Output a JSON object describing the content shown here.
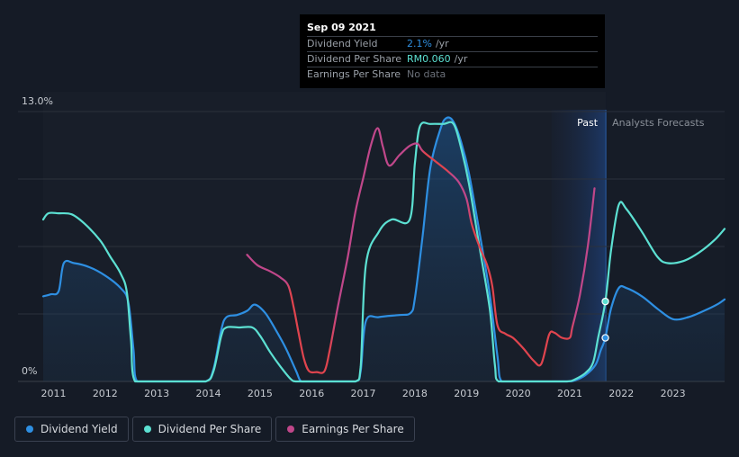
{
  "tooltip": {
    "date": "Sep 09 2021",
    "rows": [
      {
        "label": "Dividend Yield",
        "value": "2.1%",
        "unit": "/yr"
      },
      {
        "label": "Dividend Per Share",
        "value": "RM0.060",
        "unit": "/yr"
      },
      {
        "label": "Earnings Per Share",
        "value": "No data",
        "unit": ""
      }
    ]
  },
  "legend": [
    {
      "label": "Dividend Yield",
      "color": "#2e8fe2"
    },
    {
      "label": "Dividend Per Share",
      "color": "#5ce0d2"
    },
    {
      "label": "Earnings Per Share",
      "color": "#c0478a"
    }
  ],
  "chart_data": {
    "type": "line",
    "y_top_label": "13.0%",
    "y_bottom_label": "0%",
    "ylim": [
      0,
      13
    ],
    "xlim": [
      2010.8,
      2024.0
    ],
    "x_ticks": [
      "2011",
      "2012",
      "2013",
      "2014",
      "2015",
      "2016",
      "2017",
      "2018",
      "2019",
      "2020",
      "2021",
      "2022",
      "2023"
    ],
    "past_label": "Past",
    "forecast_label": "Analysts Forecasts",
    "forecast_start": 2021.7,
    "series": [
      {
        "name": "Dividend Yield",
        "color": "#2e8fe2",
        "area": true,
        "points": [
          [
            2010.8,
            4.1
          ],
          [
            2010.95,
            4.2
          ],
          [
            2011.1,
            4.35
          ],
          [
            2011.2,
            5.7
          ],
          [
            2011.4,
            5.7
          ],
          [
            2011.7,
            5.5
          ],
          [
            2012.0,
            5.1
          ],
          [
            2012.3,
            4.5
          ],
          [
            2012.45,
            3.8
          ],
          [
            2012.55,
            1.5
          ],
          [
            2012.62,
            0
          ],
          [
            2013.0,
            0
          ],
          [
            2013.5,
            0
          ],
          [
            2013.95,
            0
          ],
          [
            2014.1,
            0.6
          ],
          [
            2014.25,
            2.5
          ],
          [
            2014.35,
            3.1
          ],
          [
            2014.55,
            3.2
          ],
          [
            2014.75,
            3.4
          ],
          [
            2014.9,
            3.7
          ],
          [
            2015.1,
            3.3
          ],
          [
            2015.3,
            2.5
          ],
          [
            2015.5,
            1.6
          ],
          [
            2015.7,
            0.5
          ],
          [
            2015.8,
            0
          ],
          [
            2016.0,
            0
          ],
          [
            2016.4,
            0
          ],
          [
            2016.85,
            0
          ],
          [
            2016.95,
            0.5
          ],
          [
            2017.05,
            2.9
          ],
          [
            2017.3,
            3.1
          ],
          [
            2017.7,
            3.2
          ],
          [
            2017.92,
            3.3
          ],
          [
            2018.0,
            4.0
          ],
          [
            2018.15,
            7.0
          ],
          [
            2018.3,
            10.3
          ],
          [
            2018.5,
            12.2
          ],
          [
            2018.62,
            12.7
          ],
          [
            2018.75,
            12.5
          ],
          [
            2018.9,
            11.5
          ],
          [
            2019.05,
            10.0
          ],
          [
            2019.25,
            7.2
          ],
          [
            2019.45,
            4.2
          ],
          [
            2019.6,
            1.2
          ],
          [
            2019.68,
            0
          ],
          [
            2020.0,
            0
          ],
          [
            2020.5,
            0
          ],
          [
            2020.95,
            0
          ],
          [
            2021.1,
            0.05
          ],
          [
            2021.3,
            0.3
          ],
          [
            2021.5,
            0.8
          ],
          [
            2021.6,
            1.5
          ],
          [
            2021.69,
            2.1
          ],
          [
            2021.8,
            3.5
          ],
          [
            2021.95,
            4.5
          ],
          [
            2022.1,
            4.5
          ],
          [
            2022.4,
            4.1
          ],
          [
            2022.7,
            3.5
          ],
          [
            2023.0,
            3.0
          ],
          [
            2023.3,
            3.1
          ],
          [
            2023.6,
            3.4
          ],
          [
            2023.85,
            3.7
          ],
          [
            2024.0,
            3.95
          ]
        ]
      },
      {
        "name": "Dividend Per Share",
        "color": "#5ce0d2",
        "area": false,
        "points": [
          [
            2010.8,
            7.8
          ],
          [
            2010.9,
            8.1
          ],
          [
            2011.1,
            8.1
          ],
          [
            2011.35,
            8.05
          ],
          [
            2011.6,
            7.6
          ],
          [
            2011.9,
            6.8
          ],
          [
            2012.1,
            6.0
          ],
          [
            2012.3,
            5.2
          ],
          [
            2012.42,
            4.3
          ],
          [
            2012.5,
            2.0
          ],
          [
            2012.58,
            0
          ],
          [
            2013.0,
            0
          ],
          [
            2013.5,
            0
          ],
          [
            2013.95,
            0
          ],
          [
            2014.1,
            0.5
          ],
          [
            2014.25,
            2.2
          ],
          [
            2014.35,
            2.6
          ],
          [
            2014.6,
            2.6
          ],
          [
            2014.85,
            2.6
          ],
          [
            2015.0,
            2.2
          ],
          [
            2015.2,
            1.4
          ],
          [
            2015.4,
            0.7
          ],
          [
            2015.6,
            0.1
          ],
          [
            2015.7,
            0
          ],
          [
            2016.0,
            0
          ],
          [
            2016.4,
            0
          ],
          [
            2016.85,
            0
          ],
          [
            2016.95,
            0.7
          ],
          [
            2017.05,
            5.6
          ],
          [
            2017.3,
            7.2
          ],
          [
            2017.55,
            7.8
          ],
          [
            2017.9,
            7.8
          ],
          [
            2018.0,
            10.5
          ],
          [
            2018.1,
            12.3
          ],
          [
            2018.3,
            12.4
          ],
          [
            2018.55,
            12.4
          ],
          [
            2018.75,
            12.4
          ],
          [
            2018.9,
            11.2
          ],
          [
            2019.05,
            9.5
          ],
          [
            2019.25,
            6.5
          ],
          [
            2019.45,
            3.5
          ],
          [
            2019.55,
            0.8
          ],
          [
            2019.62,
            0
          ],
          [
            2020.0,
            0
          ],
          [
            2020.5,
            0
          ],
          [
            2020.95,
            0
          ],
          [
            2021.1,
            0.1
          ],
          [
            2021.3,
            0.4
          ],
          [
            2021.45,
            0.9
          ],
          [
            2021.55,
            2.1
          ],
          [
            2021.69,
            3.85
          ],
          [
            2021.8,
            6.3
          ],
          [
            2021.95,
            8.5
          ],
          [
            2022.1,
            8.3
          ],
          [
            2022.4,
            7.2
          ],
          [
            2022.7,
            6.0
          ],
          [
            2022.9,
            5.7
          ],
          [
            2023.2,
            5.8
          ],
          [
            2023.5,
            6.2
          ],
          [
            2023.8,
            6.8
          ],
          [
            2024.0,
            7.35
          ]
        ]
      },
      {
        "name": "Earnings Per Share",
        "color": "#c0478a",
        "color_negative": "#e0444e",
        "area": false,
        "segments": [
          [
            [
              2014.75,
              6.1
            ],
            [
              2014.95,
              5.6
            ],
            [
              2015.2,
              5.3
            ],
            [
              2015.4,
              5.0
            ],
            [
              2015.55,
              4.6
            ],
            [
              2015.65,
              3.6
            ],
            [
              2015.75,
              2.3
            ],
            [
              2015.85,
              1.1
            ],
            [
              2015.95,
              0.5
            ],
            [
              2016.1,
              0.45
            ],
            [
              2016.25,
              0.5
            ],
            [
              2016.35,
              1.5
            ],
            [
              2016.5,
              3.5
            ],
            [
              2016.7,
              6.0
            ],
            [
              2016.85,
              8.2
            ],
            [
              2017.0,
              9.8
            ],
            [
              2017.15,
              11.4
            ],
            [
              2017.28,
              12.2
            ],
            [
              2017.38,
              11.3
            ],
            [
              2017.5,
              10.4
            ],
            [
              2017.7,
              10.9
            ],
            [
              2017.9,
              11.35
            ],
            [
              2018.05,
              11.45
            ],
            [
              2018.15,
              11.1
            ],
            [
              2018.4,
              10.6
            ],
            [
              2018.65,
              10.1
            ],
            [
              2018.85,
              9.6
            ],
            [
              2019.0,
              8.8
            ],
            [
              2019.1,
              7.6
            ],
            [
              2019.25,
              6.5
            ],
            [
              2019.4,
              5.6
            ],
            [
              2019.5,
              4.6
            ],
            [
              2019.6,
              2.7
            ],
            [
              2019.75,
              2.3
            ],
            [
              2019.9,
              2.1
            ],
            [
              2020.1,
              1.6
            ],
            [
              2020.3,
              1.0
            ],
            [
              2020.45,
              0.85
            ],
            [
              2020.6,
              2.25
            ],
            [
              2020.7,
              2.35
            ],
            [
              2020.85,
              2.1
            ],
            [
              2021.0,
              2.1
            ],
            [
              2021.05,
              2.6
            ],
            [
              2021.2,
              4.2
            ],
            [
              2021.35,
              6.5
            ],
            [
              2021.48,
              9.3
            ]
          ]
        ]
      }
    ],
    "markers": [
      {
        "series": "Dividend Yield",
        "x": 2021.69,
        "y": 2.1
      },
      {
        "series": "Dividend Per Share",
        "x": 2021.69,
        "y": 3.85
      }
    ]
  }
}
